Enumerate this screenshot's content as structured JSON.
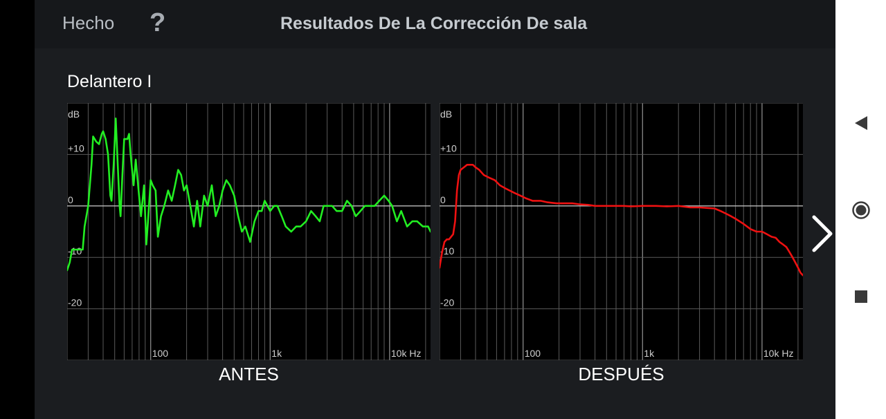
{
  "header": {
    "done_label": "Hecho",
    "help_label": "?",
    "title": "Resultados De La Corrección De sala"
  },
  "channel": "Delantero I",
  "colors": {
    "before": "#22ee22",
    "after": "#ee1111"
  },
  "chart_data": [
    {
      "type": "line",
      "caption": "ANTES",
      "x_scale": "log",
      "xlim_hz": [
        20,
        22000
      ],
      "ylim_db": [
        -30,
        20
      ],
      "y_unit": "dB",
      "y_ticks": [
        {
          "v": 10,
          "label": "+10"
        },
        {
          "v": 0,
          "label": "0"
        },
        {
          "v": -10,
          "label": "-10"
        },
        {
          "v": -20,
          "label": "-20"
        }
      ],
      "x_ticks": [
        {
          "v": 100,
          "label": "100"
        },
        {
          "v": 1000,
          "label": "1k"
        },
        {
          "v": 10000,
          "label": "10k Hz"
        }
      ],
      "grid": true,
      "series": [
        {
          "color": "#22ee22",
          "x": [
            20,
            21,
            22,
            24,
            26,
            27,
            28,
            30,
            32,
            33,
            35,
            37,
            39,
            40,
            42,
            44,
            46,
            47,
            49,
            51,
            53,
            55,
            56,
            58,
            60,
            62,
            64,
            66,
            68,
            72,
            75,
            80,
            83,
            88,
            92,
            95,
            100,
            104,
            110,
            115,
            122,
            130,
            140,
            150,
            160,
            170,
            180,
            190,
            200,
            215,
            230,
            245,
            260,
            280,
            300,
            325,
            350,
            375,
            400,
            430,
            460,
            500,
            540,
            580,
            620,
            680,
            740,
            800,
            850,
            900,
            950,
            1000,
            1080,
            1150,
            1250,
            1350,
            1500,
            1650,
            1800,
            2000,
            2200,
            2400,
            2600,
            2800,
            3000,
            3300,
            3600,
            4000,
            4400,
            4800,
            5200,
            5700,
            6200,
            6800,
            7500,
            8200,
            9000,
            9800,
            10500,
            11500,
            12500,
            14000,
            15500,
            17000,
            19000,
            21000,
            22000
          ],
          "y": [
            -12.5,
            -11,
            -8.5,
            -8.5,
            -8.5,
            -8.5,
            -4,
            0,
            8,
            13.5,
            12.5,
            12,
            14,
            14.5,
            13,
            10,
            2,
            1,
            8,
            17,
            8,
            0,
            -2,
            6,
            13,
            13,
            13,
            14,
            10,
            4,
            9,
            2,
            -2,
            4,
            -7.5,
            -3,
            5,
            4,
            3,
            -6,
            -2,
            0,
            3,
            1,
            4,
            7,
            6,
            3,
            4,
            0,
            -4,
            1,
            -4,
            2,
            0,
            4,
            -2,
            0,
            3,
            5,
            4,
            2,
            -2,
            -5,
            -4,
            -7,
            -3,
            -1,
            -1,
            1,
            0,
            -1,
            0,
            0,
            -2,
            -4,
            -5,
            -4,
            -4,
            -3,
            -1,
            -2,
            -3,
            0,
            0,
            0,
            -1,
            -1,
            1,
            0,
            -2,
            -1,
            0,
            0,
            0,
            1,
            2,
            1,
            0,
            -3,
            -1,
            -4,
            -3,
            -3,
            -4,
            -4,
            -5
          ]
        }
      ]
    },
    {
      "type": "line",
      "caption": "DESPUÉS",
      "x_scale": "log",
      "xlim_hz": [
        20,
        22000
      ],
      "ylim_db": [
        -30,
        20
      ],
      "y_unit": "dB",
      "y_ticks": [
        {
          "v": 10,
          "label": "+10"
        },
        {
          "v": 0,
          "label": "0"
        },
        {
          "v": -10,
          "label": "-10"
        },
        {
          "v": -20,
          "label": "-20"
        }
      ],
      "x_ticks": [
        {
          "v": 100,
          "label": "100"
        },
        {
          "v": 1000,
          "label": "1k"
        },
        {
          "v": 10000,
          "label": "10k Hz"
        }
      ],
      "grid": true,
      "series": [
        {
          "color": "#ee1111",
          "x": [
            20,
            21,
            22,
            23,
            24,
            25,
            26,
            27,
            28,
            29,
            30,
            32,
            34,
            36,
            38,
            40,
            43,
            47,
            52,
            58,
            64,
            70,
            77,
            85,
            95,
            105,
            120,
            140,
            160,
            190,
            220,
            260,
            300,
            350,
            400,
            500,
            600,
            700,
            800,
            1000,
            1300,
            1600,
            2000,
            2500,
            3000,
            3500,
            4000,
            4500,
            5000,
            5500,
            6000,
            7000,
            8000,
            9000,
            10000,
            11000,
            12000,
            13000,
            14000,
            15000,
            16000,
            17000,
            18000,
            19000,
            20000,
            21000,
            22000
          ],
          "y": [
            -12,
            -9,
            -7,
            -6.5,
            -6.5,
            -6,
            -5.5,
            -3,
            3,
            6,
            7,
            7.5,
            8,
            8,
            8,
            7.5,
            7,
            6,
            5.5,
            5,
            4,
            3.5,
            3,
            2.5,
            2,
            1.5,
            1,
            1,
            0.7,
            0.5,
            0.5,
            0.5,
            0.3,
            0.2,
            0,
            0,
            0,
            0,
            -0.1,
            0,
            0,
            -0.1,
            0,
            -0.3,
            -0.3,
            -0.4,
            -0.5,
            -1,
            -1.5,
            -2,
            -2.5,
            -3.5,
            -4.5,
            -5,
            -5,
            -5.5,
            -6,
            -6.2,
            -7,
            -7.5,
            -8,
            -9,
            -10,
            -11,
            -12,
            -13,
            -13.5
          ]
        }
      ]
    }
  ],
  "nav": [
    "back-icon",
    "home-icon",
    "recents-icon",
    "chevron-right-icon"
  ]
}
